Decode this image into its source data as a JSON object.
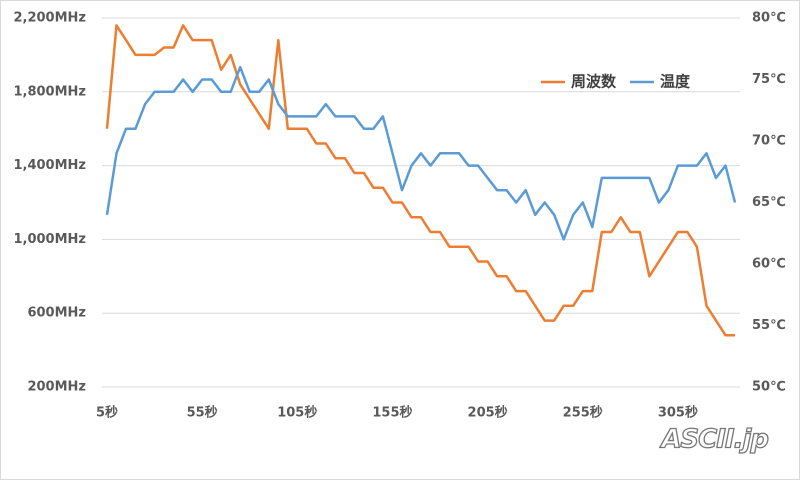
{
  "chart_data": {
    "type": "line",
    "categories": [
      "5秒",
      null,
      null,
      null,
      null,
      null,
      null,
      null,
      null,
      null,
      "55秒",
      null,
      null,
      null,
      null,
      null,
      null,
      null,
      null,
      null,
      "105秒",
      null,
      null,
      null,
      null,
      null,
      null,
      null,
      null,
      null,
      "155秒",
      null,
      null,
      null,
      null,
      null,
      null,
      null,
      null,
      null,
      "205秒",
      null,
      null,
      null,
      null,
      null,
      null,
      null,
      null,
      null,
      "255秒",
      null,
      null,
      null,
      null,
      null,
      null,
      null,
      null,
      null,
      "305秒",
      null,
      null,
      null,
      null,
      null,
      null
    ],
    "series": [
      {
        "name": "周波数",
        "color": "#ed7d31",
        "axis": "y",
        "values": [
          1600,
          2160,
          2080,
          2000,
          2000,
          2000,
          2040,
          2040,
          2160,
          2080,
          2080,
          2080,
          1920,
          2000,
          1840,
          1760,
          1680,
          1600,
          2080,
          1600,
          1600,
          1600,
          1520,
          1520,
          1440,
          1440,
          1360,
          1360,
          1280,
          1280,
          1200,
          1200,
          1120,
          1120,
          1040,
          1040,
          960,
          960,
          960,
          880,
          880,
          800,
          800,
          720,
          720,
          640,
          560,
          560,
          640,
          640,
          720,
          720,
          1040,
          1040,
          1120,
          1040,
          1040,
          800,
          880,
          960,
          1040,
          1040,
          960,
          640,
          560,
          480,
          480
        ]
      },
      {
        "name": "温度",
        "color": "#5b9bd5",
        "axis": "y2",
        "values": [
          64,
          69,
          71,
          71,
          73,
          74,
          74,
          74,
          75,
          74,
          75,
          75,
          74,
          74,
          76,
          74,
          74,
          75,
          73,
          72,
          72,
          72,
          72,
          73,
          72,
          72,
          72,
          71,
          71,
          72,
          69,
          66,
          68,
          69,
          68,
          69,
          69,
          69,
          68,
          68,
          67,
          66,
          66,
          65,
          66,
          64,
          65,
          64,
          62,
          64,
          65,
          63,
          67,
          67,
          67,
          67,
          67,
          67,
          65,
          66,
          68,
          68,
          68,
          69,
          67,
          68,
          65
        ]
      }
    ],
    "ylim": [
      200,
      2200
    ],
    "yticks": [
      {
        "value": 200,
        "label": "200MHz"
      },
      {
        "value": 600,
        "label": "600MHz"
      },
      {
        "value": 1000,
        "label": "1,000MHz"
      },
      {
        "value": 1400,
        "label": "1,400MHz"
      },
      {
        "value": 1800,
        "label": "1,800MHz"
      },
      {
        "value": 2200,
        "label": "2,200MHz"
      }
    ],
    "y2lim": [
      50,
      80
    ],
    "y2ticks": [
      {
        "value": 50,
        "label": "50℃"
      },
      {
        "value": 55,
        "label": "55℃"
      },
      {
        "value": 60,
        "label": "60℃"
      },
      {
        "value": 65,
        "label": "65℃"
      },
      {
        "value": 70,
        "label": "70℃"
      },
      {
        "value": 75,
        "label": "75℃"
      },
      {
        "value": 80,
        "label": "80℃"
      }
    ],
    "grid": true,
    "legend": "upper right",
    "watermark": "ASCII.jp"
  }
}
